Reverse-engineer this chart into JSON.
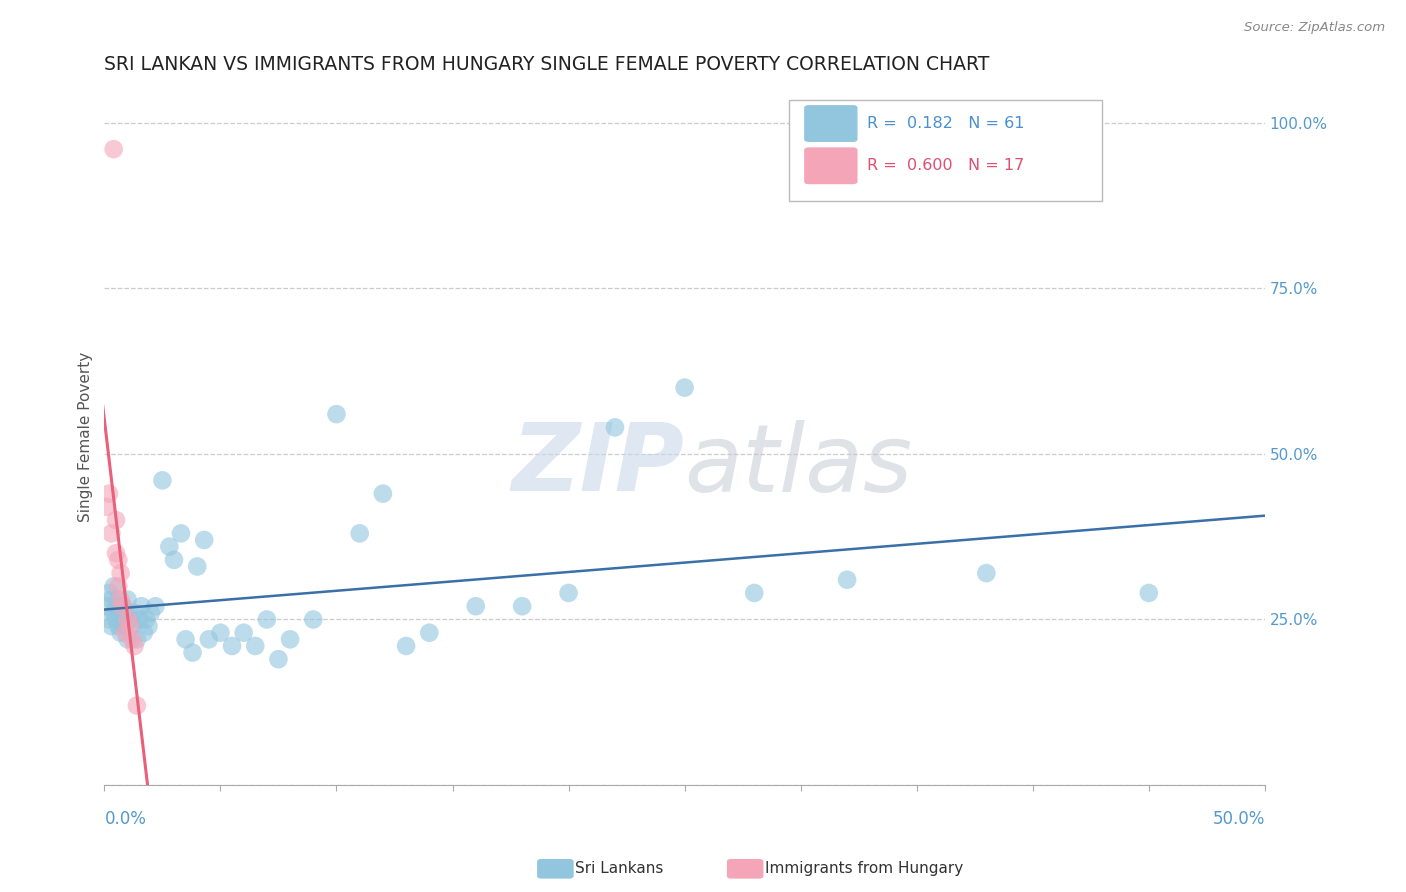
{
  "title": "SRI LANKAN VS IMMIGRANTS FROM HUNGARY SINGLE FEMALE POVERTY CORRELATION CHART",
  "source": "Source: ZipAtlas.com",
  "ylabel": "Single Female Poverty",
  "xlim": [
    0.0,
    0.5
  ],
  "ylim": [
    0.0,
    1.05
  ],
  "yticks": [
    0.0,
    0.25,
    0.5,
    0.75,
    1.0
  ],
  "ytick_labels": [
    "",
    "25.0%",
    "50.0%",
    "75.0%",
    "100.0%"
  ],
  "sri_lankan_x": [
    0.001,
    0.002,
    0.002,
    0.003,
    0.003,
    0.004,
    0.004,
    0.005,
    0.005,
    0.006,
    0.006,
    0.007,
    0.007,
    0.008,
    0.008,
    0.009,
    0.009,
    0.01,
    0.01,
    0.011,
    0.012,
    0.013,
    0.014,
    0.015,
    0.016,
    0.017,
    0.018,
    0.019,
    0.02,
    0.022,
    0.025,
    0.028,
    0.03,
    0.033,
    0.035,
    0.038,
    0.04,
    0.043,
    0.045,
    0.05,
    0.055,
    0.06,
    0.065,
    0.07,
    0.075,
    0.08,
    0.09,
    0.1,
    0.11,
    0.12,
    0.13,
    0.14,
    0.16,
    0.18,
    0.2,
    0.22,
    0.25,
    0.28,
    0.32,
    0.38,
    0.45
  ],
  "sri_lankan_y": [
    0.27,
    0.25,
    0.29,
    0.24,
    0.28,
    0.26,
    0.3,
    0.25,
    0.27,
    0.24,
    0.28,
    0.26,
    0.23,
    0.27,
    0.25,
    0.24,
    0.26,
    0.28,
    0.22,
    0.25,
    0.24,
    0.26,
    0.22,
    0.25,
    0.27,
    0.23,
    0.25,
    0.24,
    0.26,
    0.27,
    0.46,
    0.36,
    0.34,
    0.38,
    0.22,
    0.2,
    0.33,
    0.37,
    0.22,
    0.23,
    0.21,
    0.23,
    0.21,
    0.25,
    0.19,
    0.22,
    0.25,
    0.56,
    0.38,
    0.44,
    0.21,
    0.23,
    0.27,
    0.27,
    0.29,
    0.54,
    0.6,
    0.29,
    0.31,
    0.32,
    0.29
  ],
  "hungary_x": [
    0.001,
    0.002,
    0.003,
    0.004,
    0.005,
    0.005,
    0.006,
    0.006,
    0.007,
    0.007,
    0.008,
    0.009,
    0.01,
    0.011,
    0.012,
    0.013,
    0.014
  ],
  "hungary_y": [
    0.42,
    0.44,
    0.38,
    0.96,
    0.35,
    0.4,
    0.3,
    0.34,
    0.28,
    0.32,
    0.27,
    0.23,
    0.25,
    0.24,
    0.22,
    0.21,
    0.12
  ],
  "blue_color": "#92c5de",
  "pink_color": "#f4a6b8",
  "blue_line_color": "#3a6fa8",
  "pink_line_color": "#e8607a",
  "pink_dash_color": "#cccccc",
  "background_color": "#ffffff",
  "watermark_color": "#c8d8ea",
  "title_fontsize": 13.5,
  "axis_label_fontsize": 11,
  "tick_fontsize": 11,
  "legend_r1": "R =  0.182   N = 61",
  "legend_r2": "R =  0.600   N = 17",
  "legend_r1_color": "#4a90d0",
  "legend_r2_color": "#e05070",
  "bottom_label1": "Sri Lankans",
  "bottom_label2": "Immigrants from Hungary"
}
